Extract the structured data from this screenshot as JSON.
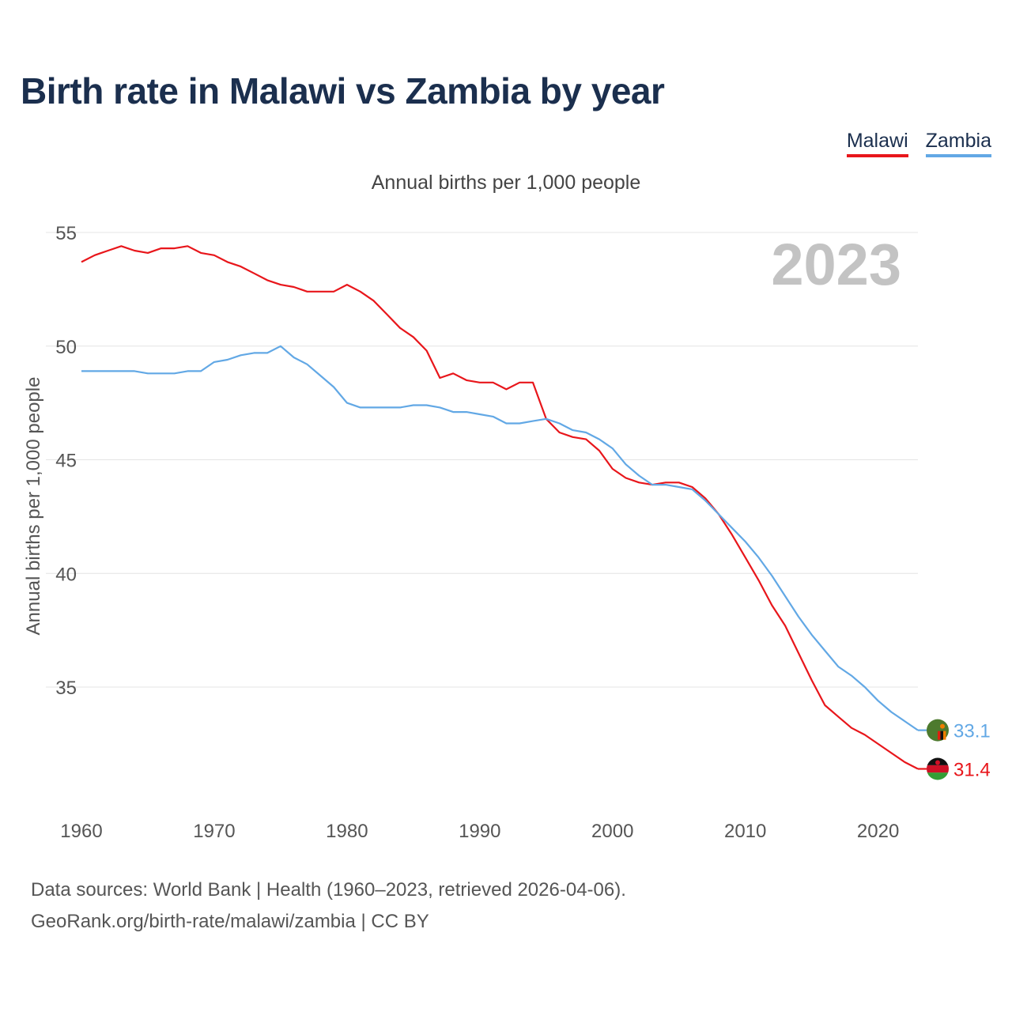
{
  "title": "Birth rate in Malawi vs Zambia by year",
  "subtitle": "Annual births per 1,000 people",
  "legend": [
    {
      "label": "Malawi",
      "color": "#e8161b"
    },
    {
      "label": "Zambia",
      "color": "#62a8e5"
    }
  ],
  "year_watermark": "2023",
  "sources": {
    "line1": "Data sources: World Bank | Health (1960–2023, retrieved 2026-04-06).",
    "line2": "GeoRank.org/birth-rate/malawi/zambia | CC BY"
  },
  "chart_data": {
    "type": "line",
    "title": "Birth rate in Malawi vs Zambia by year",
    "xlabel": "",
    "ylabel": "Annual births per 1,000 people",
    "xlim": [
      1960,
      2023
    ],
    "ylim": [
      31.0,
      55.0
    ],
    "x_ticks": [
      1960,
      1970,
      1980,
      1990,
      2000,
      2010,
      2020
    ],
    "y_ticks": [
      35,
      40,
      45,
      50,
      55
    ],
    "grid": true,
    "x": [
      1960,
      1961,
      1962,
      1963,
      1964,
      1965,
      1966,
      1967,
      1968,
      1969,
      1970,
      1971,
      1972,
      1973,
      1974,
      1975,
      1976,
      1977,
      1978,
      1979,
      1980,
      1981,
      1982,
      1983,
      1984,
      1985,
      1986,
      1987,
      1988,
      1989,
      1990,
      1991,
      1992,
      1993,
      1994,
      1995,
      1996,
      1997,
      1998,
      1999,
      2000,
      2001,
      2002,
      2003,
      2004,
      2005,
      2006,
      2007,
      2008,
      2009,
      2010,
      2011,
      2012,
      2013,
      2014,
      2015,
      2016,
      2017,
      2018,
      2019,
      2020,
      2021,
      2022,
      2023
    ],
    "series": [
      {
        "name": "Malawi",
        "color": "#e8161b",
        "end_label": "31.4",
        "values": [
          53.7,
          54.0,
          54.2,
          54.4,
          54.2,
          54.1,
          54.3,
          54.3,
          54.4,
          54.1,
          54.0,
          53.7,
          53.5,
          53.2,
          52.9,
          52.7,
          52.6,
          52.4,
          52.4,
          52.4,
          52.7,
          52.4,
          52.0,
          51.4,
          50.8,
          50.4,
          49.8,
          48.6,
          48.8,
          48.5,
          48.4,
          48.4,
          48.1,
          48.4,
          48.4,
          46.8,
          46.2,
          46.0,
          45.9,
          45.4,
          44.6,
          44.2,
          44.0,
          43.9,
          44.0,
          44.0,
          43.8,
          43.3,
          42.6,
          41.7,
          40.7,
          39.7,
          38.6,
          37.7,
          36.5,
          35.3,
          34.2,
          33.7,
          33.2,
          32.9,
          32.5,
          32.1,
          31.7,
          31.4
        ]
      },
      {
        "name": "Zambia",
        "color": "#62a8e5",
        "end_label": "33.1",
        "values": [
          48.9,
          48.9,
          48.9,
          48.9,
          48.9,
          48.8,
          48.8,
          48.8,
          48.9,
          48.9,
          49.3,
          49.4,
          49.6,
          49.7,
          49.7,
          50.0,
          49.5,
          49.2,
          48.7,
          48.2,
          47.5,
          47.3,
          47.3,
          47.3,
          47.3,
          47.4,
          47.4,
          47.3,
          47.1,
          47.1,
          47.0,
          46.9,
          46.6,
          46.6,
          46.7,
          46.8,
          46.6,
          46.3,
          46.2,
          45.9,
          45.5,
          44.8,
          44.3,
          43.9,
          43.9,
          43.8,
          43.7,
          43.2,
          42.6,
          42.0,
          41.4,
          40.7,
          39.9,
          39.0,
          38.1,
          37.3,
          36.6,
          35.9,
          35.5,
          35.0,
          34.4,
          33.9,
          33.5,
          33.1
        ]
      }
    ]
  }
}
